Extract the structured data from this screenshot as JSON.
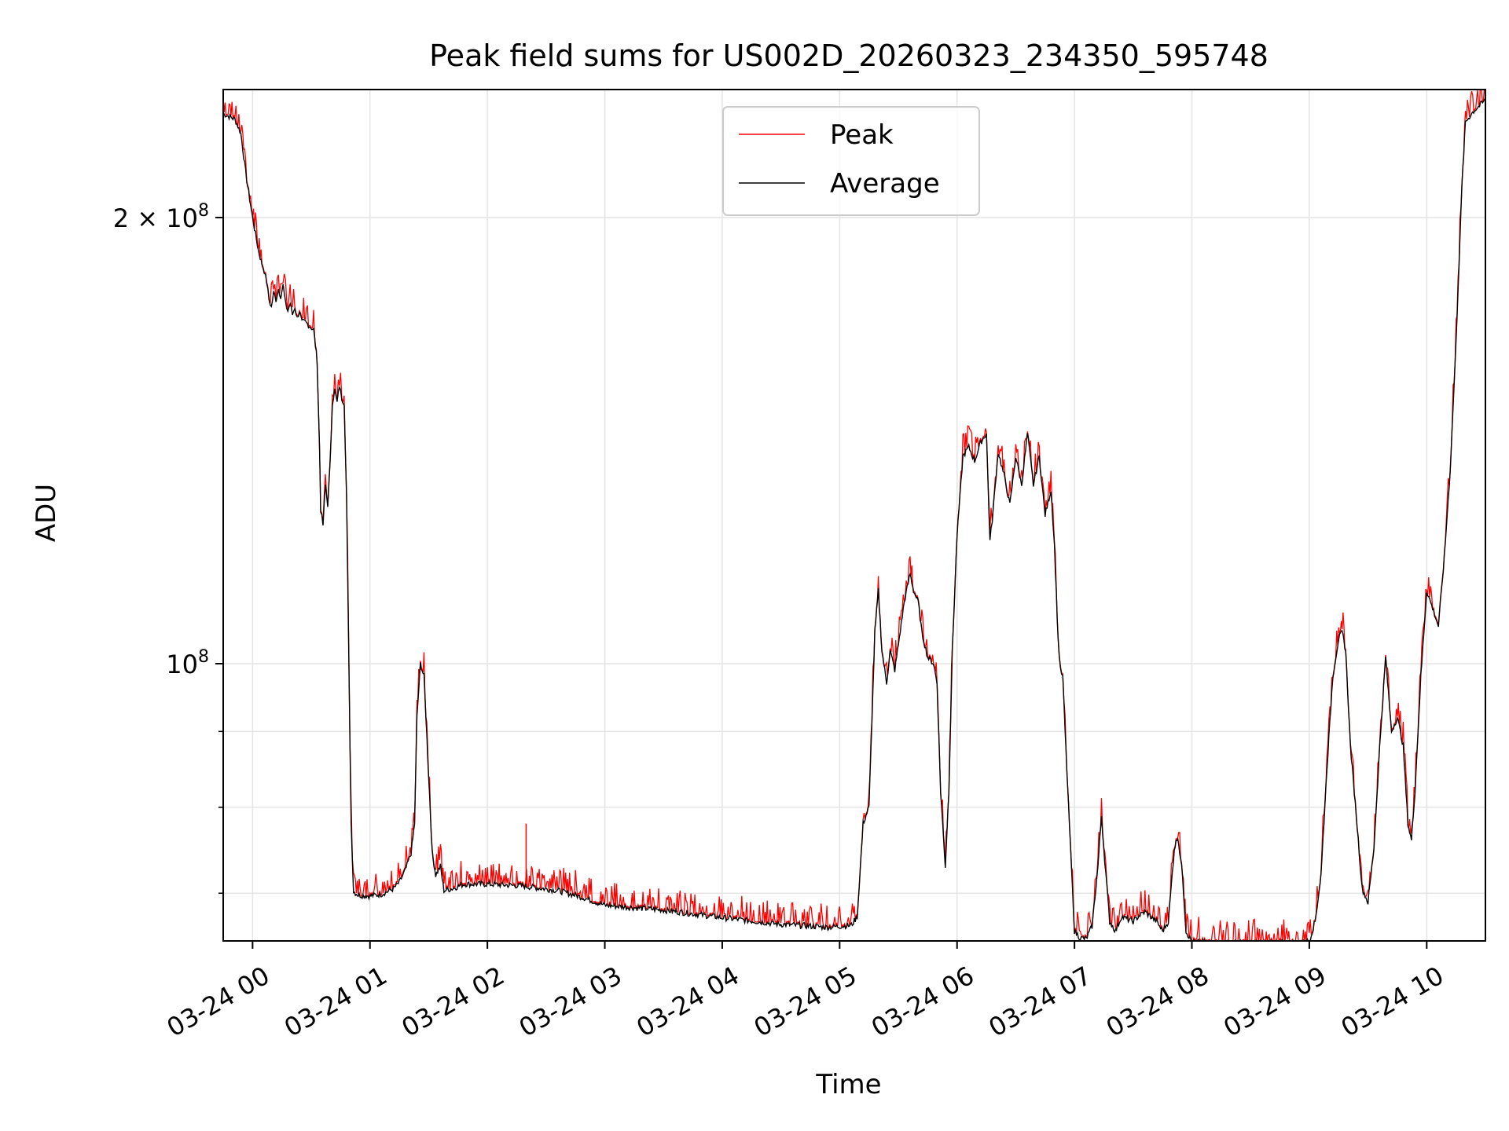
{
  "chart_data": {
    "type": "line",
    "title": "Peak field sums for US002D_20260323_234350_595748",
    "xlabel": "Time",
    "ylabel": "ADU",
    "yscale": "log",
    "xlim": [
      -0.25,
      10.5
    ],
    "ylim": [
      65000000,
      244000000
    ],
    "x_ticks": [
      {
        "value": 0,
        "label": "03-24 00"
      },
      {
        "value": 1,
        "label": "03-24 01"
      },
      {
        "value": 2,
        "label": "03-24 02"
      },
      {
        "value": 3,
        "label": "03-24 03"
      },
      {
        "value": 4,
        "label": "03-24 04"
      },
      {
        "value": 5,
        "label": "03-24 05"
      },
      {
        "value": 6,
        "label": "03-24 06"
      },
      {
        "value": 7,
        "label": "03-24 07"
      },
      {
        "value": 8,
        "label": "03-24 08"
      },
      {
        "value": 9,
        "label": "03-24 09"
      },
      {
        "value": 10,
        "label": "03-24 10"
      }
    ],
    "y_major_ticks": [
      {
        "value": 100000000,
        "base": "10",
        "exp": "8",
        "mult": ""
      },
      {
        "value": 200000000,
        "base": "10",
        "exp": "8",
        "mult": "2 × "
      }
    ],
    "y_minor_ticks": [
      70000000,
      80000000,
      90000000
    ],
    "grid": true,
    "legend_position": "top-center",
    "colors": {
      "peak": "#ff0000",
      "average": "#000000",
      "grid": "#e6e6e6"
    },
    "series": [
      {
        "name": "Average",
        "color": "#000000",
        "points": [
          [
            -0.25,
            235000000
          ],
          [
            -0.15,
            233000000
          ],
          [
            -0.1,
            228000000
          ],
          [
            -0.05,
            212000000
          ],
          [
            0.0,
            200000000
          ],
          [
            0.05,
            190000000
          ],
          [
            0.08,
            186000000
          ],
          [
            0.1,
            184000000
          ],
          [
            0.12,
            181000000
          ],
          [
            0.14,
            176000000
          ],
          [
            0.16,
            174000000
          ],
          [
            0.18,
            178000000
          ],
          [
            0.2,
            176000000
          ],
          [
            0.22,
            179000000
          ],
          [
            0.24,
            177000000
          ],
          [
            0.26,
            180000000
          ],
          [
            0.28,
            175000000
          ],
          [
            0.3,
            173000000
          ],
          [
            0.32,
            175000000
          ],
          [
            0.34,
            172000000
          ],
          [
            0.36,
            174000000
          ],
          [
            0.38,
            171000000
          ],
          [
            0.4,
            173000000
          ],
          [
            0.42,
            170000000
          ],
          [
            0.45,
            170000000
          ],
          [
            0.52,
            168000000
          ],
          [
            0.55,
            160000000
          ],
          [
            0.57,
            140000000
          ],
          [
            0.58,
            127000000
          ],
          [
            0.6,
            124000000
          ],
          [
            0.62,
            132000000
          ],
          [
            0.64,
            128000000
          ],
          [
            0.66,
            136000000
          ],
          [
            0.68,
            150000000
          ],
          [
            0.7,
            153000000
          ],
          [
            0.72,
            150000000
          ],
          [
            0.74,
            154000000
          ],
          [
            0.76,
            151000000
          ],
          [
            0.78,
            150000000
          ],
          [
            0.8,
            130000000
          ],
          [
            0.82,
            100000000
          ],
          [
            0.84,
            78000000
          ],
          [
            0.86,
            70200000
          ],
          [
            0.9,
            69800000
          ],
          [
            1.0,
            69700000
          ],
          [
            1.1,
            69900000
          ],
          [
            1.2,
            70500000
          ],
          [
            1.25,
            71200000
          ],
          [
            1.3,
            72500000
          ],
          [
            1.35,
            74500000
          ],
          [
            1.38,
            78000000
          ],
          [
            1.4,
            92000000
          ],
          [
            1.43,
            100000000
          ],
          [
            1.46,
            98000000
          ],
          [
            1.5,
            84000000
          ],
          [
            1.53,
            74500000
          ],
          [
            1.56,
            72000000
          ],
          [
            1.6,
            73000000
          ],
          [
            1.63,
            70300000
          ],
          [
            1.7,
            70500000
          ],
          [
            1.8,
            71000000
          ],
          [
            2.0,
            71000000
          ],
          [
            2.3,
            70800000
          ],
          [
            2.6,
            70300000
          ],
          [
            2.8,
            69600000
          ],
          [
            3.0,
            68700000
          ],
          [
            3.2,
            68500000
          ],
          [
            3.5,
            68200000
          ],
          [
            4.0,
            67400000
          ],
          [
            4.5,
            66700000
          ],
          [
            4.9,
            66400000
          ],
          [
            5.1,
            66600000
          ],
          [
            5.15,
            67500000
          ],
          [
            5.2,
            78000000
          ],
          [
            5.25,
            80000000
          ],
          [
            5.3,
            105000000
          ],
          [
            5.33,
            112000000
          ],
          [
            5.36,
            102000000
          ],
          [
            5.4,
            97000000
          ],
          [
            5.43,
            102000000
          ],
          [
            5.47,
            99000000
          ],
          [
            5.5,
            103000000
          ],
          [
            5.55,
            110000000
          ],
          [
            5.6,
            115000000
          ],
          [
            5.63,
            112000000
          ],
          [
            5.67,
            110000000
          ],
          [
            5.7,
            105000000
          ],
          [
            5.75,
            101000000
          ],
          [
            5.8,
            100000000
          ],
          [
            5.83,
            97000000
          ],
          [
            5.86,
            82000000
          ],
          [
            5.9,
            73000000
          ],
          [
            5.93,
            82000000
          ],
          [
            5.96,
            102000000
          ],
          [
            6.0,
            122000000
          ],
          [
            6.05,
            138000000
          ],
          [
            6.1,
            140000000
          ],
          [
            6.15,
            137000000
          ],
          [
            6.2,
            141000000
          ],
          [
            6.25,
            143000000
          ],
          [
            6.28,
            121000000
          ],
          [
            6.3,
            125000000
          ],
          [
            6.35,
            139000000
          ],
          [
            6.4,
            134000000
          ],
          [
            6.45,
            128000000
          ],
          [
            6.5,
            138000000
          ],
          [
            6.55,
            132000000
          ],
          [
            6.6,
            143000000
          ],
          [
            6.65,
            132000000
          ],
          [
            6.7,
            138000000
          ],
          [
            6.75,
            126000000
          ],
          [
            6.8,
            131000000
          ],
          [
            6.83,
            120000000
          ],
          [
            6.86,
            104000000
          ],
          [
            6.88,
            99000000
          ],
          [
            6.9,
            98000000
          ],
          [
            6.92,
            90000000
          ],
          [
            6.95,
            80000000
          ],
          [
            7.0,
            66000000
          ],
          [
            7.05,
            65300000
          ],
          [
            7.1,
            65200000
          ],
          [
            7.15,
            66500000
          ],
          [
            7.2,
            73000000
          ],
          [
            7.23,
            79000000
          ],
          [
            7.25,
            75000000
          ],
          [
            7.3,
            67000000
          ],
          [
            7.35,
            66000000
          ],
          [
            7.4,
            67500000
          ],
          [
            7.5,
            67000000
          ],
          [
            7.55,
            67600000
          ],
          [
            7.6,
            68000000
          ],
          [
            7.7,
            67000000
          ],
          [
            7.75,
            66000000
          ],
          [
            7.8,
            67000000
          ],
          [
            7.85,
            75000000
          ],
          [
            7.88,
            76500000
          ],
          [
            7.92,
            72000000
          ],
          [
            7.95,
            66000000
          ],
          [
            8.0,
            64900000
          ],
          [
            8.2,
            64800000
          ],
          [
            8.6,
            64800000
          ],
          [
            8.9,
            64800000
          ],
          [
            9.0,
            65000000
          ],
          [
            9.05,
            67000000
          ],
          [
            9.1,
            72000000
          ],
          [
            9.15,
            85000000
          ],
          [
            9.2,
            98000000
          ],
          [
            9.25,
            104000000
          ],
          [
            9.28,
            105000000
          ],
          [
            9.31,
            102000000
          ],
          [
            9.35,
            88000000
          ],
          [
            9.4,
            79000000
          ],
          [
            9.45,
            70500000
          ],
          [
            9.5,
            69000000
          ],
          [
            9.55,
            75000000
          ],
          [
            9.6,
            88000000
          ],
          [
            9.65,
            101000000
          ],
          [
            9.7,
            90000000
          ],
          [
            9.75,
            92000000
          ],
          [
            9.8,
            88000000
          ],
          [
            9.84,
            78000000
          ],
          [
            9.87,
            76000000
          ],
          [
            9.9,
            82000000
          ],
          [
            9.95,
            98000000
          ],
          [
            10.0,
            112000000
          ],
          [
            10.05,
            109000000
          ],
          [
            10.1,
            106000000
          ],
          [
            10.15,
            118000000
          ],
          [
            10.2,
            135000000
          ],
          [
            10.25,
            165000000
          ],
          [
            10.3,
            210000000
          ],
          [
            10.33,
            232000000
          ],
          [
            10.4,
            236000000
          ],
          [
            10.5,
            240000000
          ]
        ]
      }
    ],
    "peak_series": {
      "name": "Peak",
      "color": "#ff0000",
      "typical_excess_fraction": 0.012,
      "spikes": [
        {
          "x": 2.33,
          "value": 78000000
        }
      ]
    }
  }
}
